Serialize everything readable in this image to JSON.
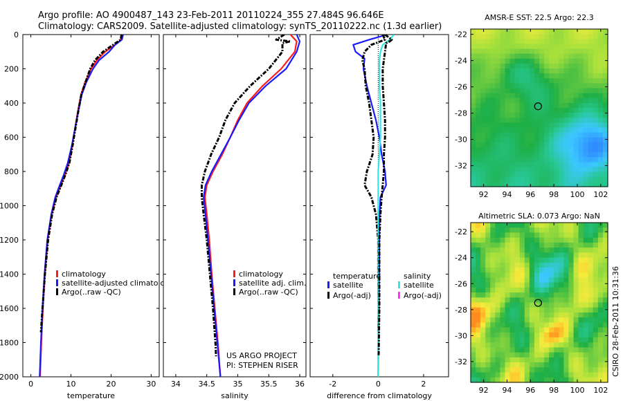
{
  "header": {
    "line1": "Argo profile: AO 4900487_143 23-Feb-2011 20110224_355 27.484S 96.646E",
    "line2": "Climatology: CARS2009. Satellite-adjusted climatology: synTS_20110222.nc (1.3d earlier)"
  },
  "side_text": "CSIRO 28-Feb-2011 10:31:36",
  "credit": {
    "line1": "US ARGO PROJECT",
    "line2": "PI: STEPHEN RISER"
  },
  "colors": {
    "climatology": "#ff1a1a",
    "satellite": "#1a1aff",
    "argo": "#000000",
    "sal_satellite": "#33e6e6",
    "sal_argo": "#ff33ff"
  },
  "chart_data": [
    {
      "type": "line",
      "name": "temperature-profile",
      "xlabel": "temperature",
      "xlim": [
        -2,
        32
      ],
      "ylim": [
        2000,
        0
      ],
      "xticks": [
        0,
        10,
        20,
        30
      ],
      "yticks": [
        0,
        200,
        400,
        600,
        800,
        1000,
        1200,
        1400,
        1600,
        1800,
        2000
      ],
      "legend": [
        "climatology",
        "satellite-adjusted climatology",
        "Argo(..raw -QC)"
      ],
      "legend_placement": "lower-right",
      "series": [
        {
          "name": "climatology",
          "color": "#ff1a1a",
          "points": [
            [
              22.8,
              0
            ],
            [
              22.5,
              30
            ],
            [
              21,
              60
            ],
            [
              18.5,
              100
            ],
            [
              16.5,
              150
            ],
            [
              15,
              200
            ],
            [
              13.5,
              280
            ],
            [
              12.5,
              350
            ],
            [
              11.7,
              450
            ],
            [
              11,
              550
            ],
            [
              10.3,
              650
            ],
            [
              9.5,
              750
            ],
            [
              8.5,
              820
            ],
            [
              7.5,
              880
            ],
            [
              6.3,
              950
            ],
            [
              5.2,
              1050
            ],
            [
              4.2,
              1200
            ],
            [
              3.5,
              1400
            ],
            [
              3,
              1600
            ],
            [
              2.6,
              1800
            ],
            [
              2.3,
              2000
            ]
          ]
        },
        {
          "name": "satellite-adjusted",
          "color": "#1a1aff",
          "points": [
            [
              23,
              0
            ],
            [
              22.7,
              30
            ],
            [
              21,
              60
            ],
            [
              19.5,
              100
            ],
            [
              17,
              150
            ],
            [
              15.5,
              200
            ],
            [
              13.8,
              280
            ],
            [
              12.7,
              350
            ],
            [
              11.8,
              450
            ],
            [
              11,
              550
            ],
            [
              10.2,
              650
            ],
            [
              9.2,
              750
            ],
            [
              8.2,
              820
            ],
            [
              7.2,
              880
            ],
            [
              6.1,
              950
            ],
            [
              5.1,
              1050
            ],
            [
              4.1,
              1200
            ],
            [
              3.4,
              1400
            ],
            [
              2.9,
              1600
            ],
            [
              2.5,
              1800
            ],
            [
              2.2,
              2000
            ]
          ]
        },
        {
          "name": "argo",
          "color": "#000000",
          "points": [
            [
              22.6,
              0
            ],
            [
              22.4,
              30
            ],
            [
              20.5,
              60
            ],
            [
              18,
              100
            ],
            [
              16,
              150
            ],
            [
              14.8,
              200
            ],
            [
              13.6,
              280
            ],
            [
              12.6,
              350
            ],
            [
              11.8,
              450
            ],
            [
              11.1,
              550
            ],
            [
              10.4,
              650
            ],
            [
              9.6,
              750
            ],
            [
              8.6,
              820
            ],
            [
              7.6,
              880
            ],
            [
              6.4,
              950
            ],
            [
              5.3,
              1050
            ],
            [
              4.3,
              1200
            ],
            [
              3.5,
              1400
            ],
            [
              2.9,
              1600
            ],
            [
              2.5,
              1740
            ]
          ]
        }
      ]
    },
    {
      "type": "line",
      "name": "salinity-profile",
      "xlabel": "salinity",
      "xlim": [
        33.8,
        36.1
      ],
      "ylim": [
        2000,
        0
      ],
      "xticks": [
        34,
        34.5,
        35,
        35.5,
        36
      ],
      "legend": [
        "climatology",
        "satellite adj. clim.",
        "Argo(..raw -QC)"
      ],
      "legend_placement": "lower-right",
      "series": [
        {
          "name": "climatology",
          "color": "#ff1a1a",
          "points": [
            [
              35.85,
              0
            ],
            [
              35.95,
              40
            ],
            [
              35.92,
              100
            ],
            [
              35.7,
              200
            ],
            [
              35.4,
              300
            ],
            [
              35.15,
              400
            ],
            [
              35.0,
              500
            ],
            [
              34.88,
              600
            ],
            [
              34.75,
              700
            ],
            [
              34.6,
              800
            ],
            [
              34.5,
              880
            ],
            [
              34.47,
              950
            ],
            [
              34.5,
              1050
            ],
            [
              34.54,
              1200
            ],
            [
              34.58,
              1400
            ],
            [
              34.63,
              1600
            ],
            [
              34.68,
              1800
            ],
            [
              34.72,
              2000
            ]
          ]
        },
        {
          "name": "satellite-adjusted",
          "color": "#1a1aff",
          "points": [
            [
              35.95,
              0
            ],
            [
              36.0,
              40
            ],
            [
              35.95,
              100
            ],
            [
              35.78,
              200
            ],
            [
              35.45,
              300
            ],
            [
              35.18,
              400
            ],
            [
              35.02,
              500
            ],
            [
              34.88,
              600
            ],
            [
              34.73,
              700
            ],
            [
              34.58,
              800
            ],
            [
              34.48,
              880
            ],
            [
              34.45,
              950
            ],
            [
              34.48,
              1050
            ],
            [
              34.52,
              1200
            ],
            [
              34.57,
              1400
            ],
            [
              34.62,
              1600
            ],
            [
              34.67,
              1800
            ],
            [
              34.72,
              2000
            ]
          ]
        },
        {
          "name": "argo",
          "color": "#000000",
          "points": [
            [
              35.75,
              0
            ],
            [
              35.62,
              30
            ],
            [
              35.85,
              40
            ],
            [
              35.72,
              50
            ],
            [
              35.72,
              100
            ],
            [
              35.5,
              200
            ],
            [
              35.2,
              300
            ],
            [
              34.95,
              400
            ],
            [
              34.8,
              500
            ],
            [
              34.7,
              600
            ],
            [
              34.57,
              700
            ],
            [
              34.47,
              800
            ],
            [
              34.42,
              880
            ],
            [
              34.42,
              950
            ],
            [
              34.45,
              1050
            ],
            [
              34.5,
              1200
            ],
            [
              34.55,
              1400
            ],
            [
              34.6,
              1600
            ],
            [
              34.64,
              1800
            ],
            [
              34.65,
              1880
            ]
          ]
        }
      ]
    },
    {
      "type": "line",
      "name": "difference-profile",
      "xlabel": "difference from climatology",
      "xlim": [
        -3,
        3.1
      ],
      "ylim": [
        2000,
        0
      ],
      "xticks": [
        -2,
        0,
        2
      ],
      "legend_groups": {
        "temperature": {
          "title": "temperature",
          "items": [
            "satellite",
            "Argo(-adj)"
          ]
        },
        "salinity": {
          "title": "salinity",
          "items": [
            "satellite",
            "Argo(-adj)"
          ]
        }
      },
      "legend_placement": "lower-right",
      "series": [
        {
          "name": "temperature satellite",
          "color": "#1a1aff",
          "points": [
            [
              0.4,
              0
            ],
            [
              -0.4,
              30
            ],
            [
              -1.1,
              60
            ],
            [
              -1.0,
              100
            ],
            [
              -0.6,
              140
            ],
            [
              -0.65,
              200
            ],
            [
              -0.5,
              300
            ],
            [
              -0.3,
              400
            ],
            [
              -0.1,
              500
            ],
            [
              0.05,
              600
            ],
            [
              0.15,
              700
            ],
            [
              0.3,
              800
            ],
            [
              0.35,
              880
            ],
            [
              0.1,
              950
            ],
            [
              0.05,
              1100
            ],
            [
              0.05,
              1300
            ],
            [
              0.02,
              1600
            ],
            [
              0.0,
              2000
            ]
          ]
        },
        {
          "name": "temperature argo",
          "color": "#000000",
          "points": [
            [
              0.2,
              0
            ],
            [
              0.3,
              30
            ],
            [
              -0.3,
              60
            ],
            [
              -0.6,
              100
            ],
            [
              -0.7,
              150
            ],
            [
              -0.6,
              200
            ],
            [
              -0.55,
              300
            ],
            [
              -0.4,
              400
            ],
            [
              -0.3,
              500
            ],
            [
              -0.2,
              600
            ],
            [
              -0.25,
              700
            ],
            [
              -0.5,
              800
            ],
            [
              -0.6,
              880
            ],
            [
              -0.3,
              950
            ],
            [
              -0.1,
              1050
            ],
            [
              0.0,
              1200
            ],
            [
              0.0,
              1400
            ],
            [
              0.02,
              1600
            ],
            [
              0.0,
              1740
            ]
          ]
        },
        {
          "name": "salinity satellite",
          "color": "#33e6e6",
          "points": [
            [
              0.7,
              0
            ],
            [
              0.5,
              30
            ],
            [
              0.2,
              60
            ],
            [
              0.1,
              100
            ],
            [
              0.05,
              150
            ],
            [
              0.05,
              200
            ],
            [
              0.05,
              300
            ],
            [
              0.1,
              400
            ],
            [
              0.1,
              500
            ],
            [
              0.1,
              600
            ],
            [
              0.05,
              700
            ],
            [
              0.0,
              800
            ],
            [
              0.0,
              900
            ],
            [
              0.0,
              1000
            ],
            [
              0.0,
              1200
            ],
            [
              0.0,
              1400
            ],
            [
              0.0,
              1600
            ],
            [
              0.0,
              2000
            ]
          ]
        },
        {
          "name": "salinity argo",
          "color": "#000000",
          "points": [
            [
              0.3,
              0
            ],
            [
              0.6,
              30
            ],
            [
              0.5,
              40
            ],
            [
              0.35,
              50
            ],
            [
              0.3,
              100
            ],
            [
              0.2,
              200
            ],
            [
              0.2,
              300
            ],
            [
              0.25,
              400
            ],
            [
              0.3,
              500
            ],
            [
              0.3,
              600
            ],
            [
              0.25,
              700
            ],
            [
              0.25,
              800
            ],
            [
              0.2,
              880
            ],
            [
              0.15,
              950
            ],
            [
              0.1,
              1050
            ],
            [
              0.05,
              1200
            ],
            [
              0.05,
              1400
            ],
            [
              0.05,
              1600
            ],
            [
              0.02,
              1880
            ]
          ]
        }
      ]
    },
    {
      "type": "heatmap",
      "name": "sst-map",
      "title": "AMSR-E SST: 22.5  Argo: 22.3",
      "xlim": [
        90.9,
        102.6
      ],
      "ylim": [
        -33.6,
        -21.6
      ],
      "xticks": [
        92,
        94,
        96,
        98,
        100,
        102
      ],
      "yticks": [
        -22,
        -24,
        -26,
        -28,
        -30,
        -32
      ],
      "marker": {
        "lon": 96.65,
        "lat": -27.48
      }
    },
    {
      "type": "heatmap",
      "name": "sla-map",
      "title": "Altimetric SLA: 0.073  Argo: NaN",
      "xlim": [
        90.9,
        102.6
      ],
      "ylim": [
        -33.6,
        -21.3
      ],
      "xticks": [
        92,
        94,
        96,
        98,
        100,
        102
      ],
      "yticks": [
        -22,
        -24,
        -26,
        -28,
        -30,
        -32
      ],
      "marker": {
        "lon": 96.65,
        "lat": -27.48
      }
    }
  ]
}
